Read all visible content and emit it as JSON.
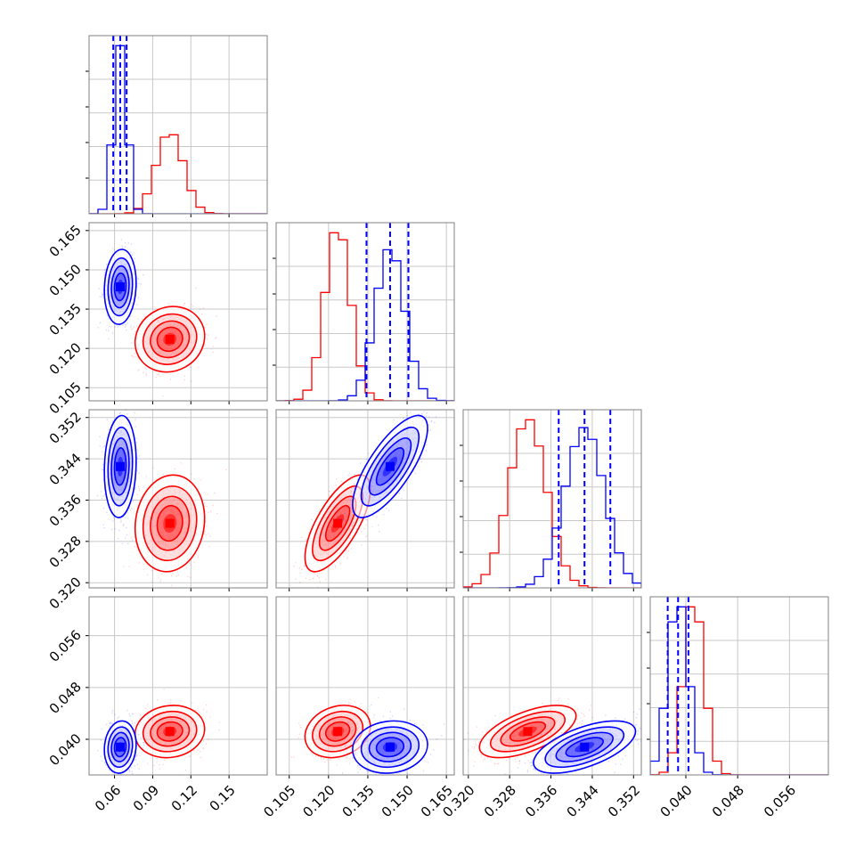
{
  "chart_data": {
    "type": "corner",
    "parameters": [
      {
        "range": [
          0.04,
          0.18
        ],
        "ticks": [
          0.06,
          0.09,
          0.12,
          0.15
        ],
        "tick_labels": [
          "0.06",
          "0.09",
          "0.12",
          "0.15"
        ]
      },
      {
        "range": [
          0.1,
          0.168
        ],
        "ticks": [
          0.105,
          0.12,
          0.135,
          0.15,
          0.165
        ],
        "tick_labels": [
          "0.105",
          "0.120",
          "0.135",
          "0.150",
          "0.165"
        ]
      },
      {
        "range": [
          0.319,
          0.3535
        ],
        "ticks": [
          0.32,
          0.328,
          0.336,
          0.344,
          0.352
        ],
        "tick_labels": [
          "0.320",
          "0.328",
          "0.336",
          "0.344",
          "0.352"
        ]
      },
      {
        "range": [
          0.0345,
          0.062
        ],
        "ticks": [
          0.04,
          0.048,
          0.056
        ],
        "tick_labels": [
          "0.040",
          "0.048",
          "0.056"
        ]
      }
    ],
    "series": [
      {
        "name": "",
        "color": "#ff0000",
        "mean": [
          0.1035,
          0.1235,
          0.3315,
          0.0412
        ],
        "sd": [
          0.0105,
          0.0048,
          0.0036,
          0.00155
        ],
        "correlation": {
          "0-1": 0.1,
          "0-2": 0.1,
          "0-3": 0.1,
          "1-2": 0.7,
          "1-3": 0.2,
          "2-3": 0.6
        },
        "quantile_lines": null
      },
      {
        "name": "",
        "color": "#0000ff",
        "mean": [
          0.0645,
          0.1435,
          0.3425,
          0.0388
        ],
        "sd": [
          0.0048,
          0.0055,
          0.0038,
          0.00155
        ],
        "correlation": {
          "0-1": 0.1,
          "0-2": 0.1,
          "0-3": 0.1,
          "1-2": 0.75,
          "1-3": 0.1,
          "2-3": 0.6
        },
        "quantile_lines": [
          [
            0.059,
            0.0645,
            0.0695
          ],
          [
            0.1345,
            0.1435,
            0.1505
          ],
          [
            0.3375,
            0.3425,
            0.3475
          ],
          [
            0.0372,
            0.0388,
            0.0404
          ]
        ]
      }
    ],
    "histogram_bins": 20,
    "grid": true,
    "legend": null
  }
}
